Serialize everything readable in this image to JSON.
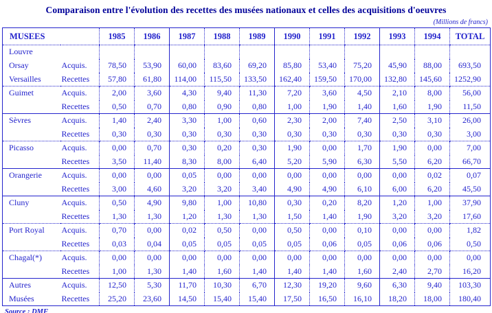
{
  "title": "Comparaison entre l'évolution des recettes des musées nationaux et celles des acquisitions d'oeuvres",
  "unit_note": "(Millions de francs)",
  "source_note": "Source : DMF",
  "colors": {
    "text": "#2222cc",
    "title": "#000099",
    "border": "#2222cc"
  },
  "table": {
    "corner_label": "MUSEES",
    "years": [
      "1985",
      "1986",
      "1987",
      "1988",
      "1989",
      "1990",
      "1991",
      "1992",
      "1993",
      "1994"
    ],
    "total_label": "TOTAL",
    "row_type_labels": {
      "acquisitions": "Acquis.",
      "recettes": "Recettes"
    },
    "groups": [
      {
        "name_lines": [
          "Louvre",
          "Orsay",
          "Versailles"
        ],
        "acquis": {
          "values": [
            "78,50",
            "53,90",
            "60,00",
            "83,60",
            "69,20",
            "85,80",
            "53,40",
            "75,20",
            "45,90",
            "88,00"
          ],
          "total": "693,50"
        },
        "recettes": {
          "values": [
            "57,80",
            "61,80",
            "114,00",
            "115,50",
            "133,50",
            "162,40",
            "159,50",
            "170,00",
            "132,80",
            "145,60"
          ],
          "total": "1252,90"
        }
      },
      {
        "name_lines": [
          "Guimet",
          ""
        ],
        "acquis": {
          "values": [
            "2,00",
            "3,60",
            "4,30",
            "9,40",
            "11,30",
            "7,20",
            "3,60",
            "4,50",
            "2,10",
            "8,00"
          ],
          "total": "56,00"
        },
        "recettes": {
          "values": [
            "0,50",
            "0,70",
            "0,80",
            "0,90",
            "0,80",
            "1,00",
            "1,90",
            "1,40",
            "1,60",
            "1,90"
          ],
          "total": "11,50"
        }
      },
      {
        "name_lines": [
          "Sèvres",
          ""
        ],
        "acquis": {
          "values": [
            "1,40",
            "2,40",
            "3,30",
            "1,00",
            "0,60",
            "2,30",
            "2,00",
            "7,40",
            "2,50",
            "3,10"
          ],
          "total": "26,00"
        },
        "recettes": {
          "values": [
            "0,30",
            "0,30",
            "0,30",
            "0,30",
            "0,30",
            "0,30",
            "0,30",
            "0,30",
            "0,30",
            "0,30"
          ],
          "total": "3,00"
        }
      },
      {
        "name_lines": [
          "Picasso",
          ""
        ],
        "acquis": {
          "values": [
            "0,00",
            "0,70",
            "0,30",
            "0,20",
            "0,30",
            "1,90",
            "0,00",
            "1,70",
            "1,90",
            "0,00"
          ],
          "total": "7,00"
        },
        "recettes": {
          "values": [
            "3,50",
            "11,40",
            "8,30",
            "8,00",
            "6,40",
            "5,20",
            "5,90",
            "6,30",
            "5,50",
            "6,20"
          ],
          "total": "66,70"
        }
      },
      {
        "name_lines": [
          "Orangerie",
          ""
        ],
        "acquis": {
          "values": [
            "0,00",
            "0,00",
            "0,05",
            "0,00",
            "0,00",
            "0,00",
            "0,00",
            "0,00",
            "0,00",
            "0,02"
          ],
          "total": "0,07"
        },
        "recettes": {
          "values": [
            "3,00",
            "4,60",
            "3,20",
            "3,20",
            "3,40",
            "4,90",
            "4,90",
            "6,10",
            "6,00",
            "6,20"
          ],
          "total": "45,50"
        }
      },
      {
        "name_lines": [
          "Cluny",
          ""
        ],
        "acquis": {
          "values": [
            "0,50",
            "4,90",
            "9,80",
            "1,00",
            "10,80",
            "0,30",
            "0,20",
            "8,20",
            "1,20",
            "1,00"
          ],
          "total": "37,90"
        },
        "recettes": {
          "values": [
            "1,30",
            "1,30",
            "1,20",
            "1,30",
            "1,30",
            "1,50",
            "1,40",
            "1,90",
            "3,20",
            "3,20"
          ],
          "total": "17,60"
        }
      },
      {
        "name_lines": [
          "Port Royal",
          ""
        ],
        "acquis": {
          "values": [
            "0,70",
            "0,00",
            "0,02",
            "0,50",
            "0,00",
            "0,50",
            "0,00",
            "0,10",
            "0,00",
            "0,00"
          ],
          "total": "1,82"
        },
        "recettes": {
          "values": [
            "0,03",
            "0,04",
            "0,05",
            "0,05",
            "0,05",
            "0,05",
            "0,06",
            "0,05",
            "0,06",
            "0,06"
          ],
          "total": "0,50"
        }
      },
      {
        "name_lines": [
          "Chagal(*)",
          ""
        ],
        "acquis": {
          "values": [
            "0,00",
            "0,00",
            "0,00",
            "0,00",
            "0,00",
            "0,00",
            "0,00",
            "0,00",
            "0,00",
            "0,00"
          ],
          "total": "0,00"
        },
        "recettes": {
          "values": [
            "1,00",
            "1,30",
            "1,40",
            "1,60",
            "1,40",
            "1,40",
            "1,40",
            "1,60",
            "2,40",
            "2,70"
          ],
          "total": "16,20"
        }
      },
      {
        "name_lines": [
          "Autres",
          "Musées"
        ],
        "acquis": {
          "values": [
            "12,50",
            "5,30",
            "11,70",
            "10,30",
            "6,70",
            "12,30",
            "19,20",
            "9,60",
            "6,30",
            "9,40"
          ],
          "total": "103,30"
        },
        "recettes": {
          "values": [
            "25,20",
            "23,60",
            "14,50",
            "15,40",
            "15,40",
            "17,50",
            "16,50",
            "16,10",
            "18,20",
            "18,00"
          ],
          "total": "180,40"
        }
      }
    ]
  }
}
